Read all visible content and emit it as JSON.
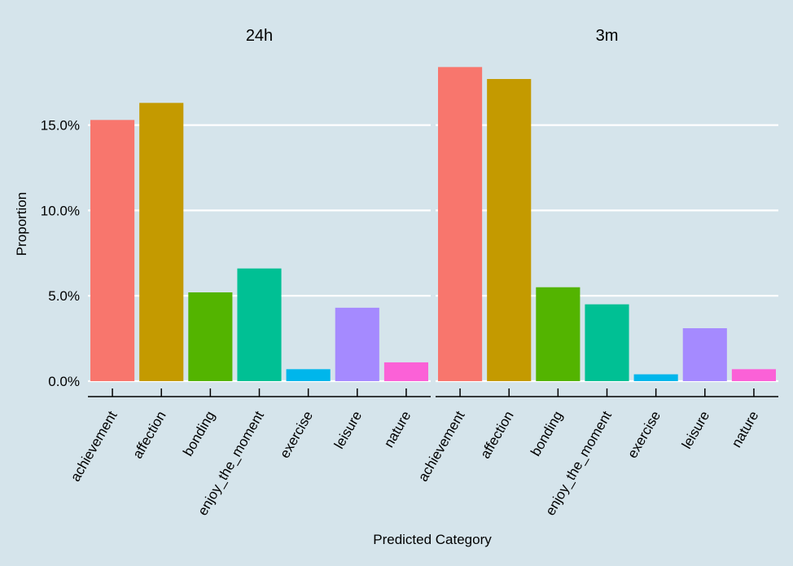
{
  "chart_data": {
    "type": "bar",
    "xlabel": "Predicted Category",
    "ylabel": "Proportion",
    "ylim": [
      0,
      0.185
    ],
    "yticks": [
      0,
      0.05,
      0.1,
      0.15
    ],
    "ytick_labels": [
      "0.0%",
      "5.0%",
      "10.0%",
      "15.0%"
    ],
    "grid": "horizontal-major",
    "categories": [
      "achievement",
      "affection",
      "bonding",
      "enjoy_the_moment",
      "exercise",
      "leisure",
      "nature"
    ],
    "colors": [
      "#F8766D",
      "#C49A00",
      "#53B400",
      "#00C094",
      "#00B6EB",
      "#A58AFF",
      "#FB61D7"
    ],
    "panels": [
      {
        "title": "24h",
        "values": [
          0.153,
          0.163,
          0.052,
          0.066,
          0.007,
          0.043,
          0.011
        ]
      },
      {
        "title": "3m",
        "values": [
          0.184,
          0.177,
          0.055,
          0.045,
          0.004,
          0.031,
          0.007
        ]
      }
    ]
  }
}
